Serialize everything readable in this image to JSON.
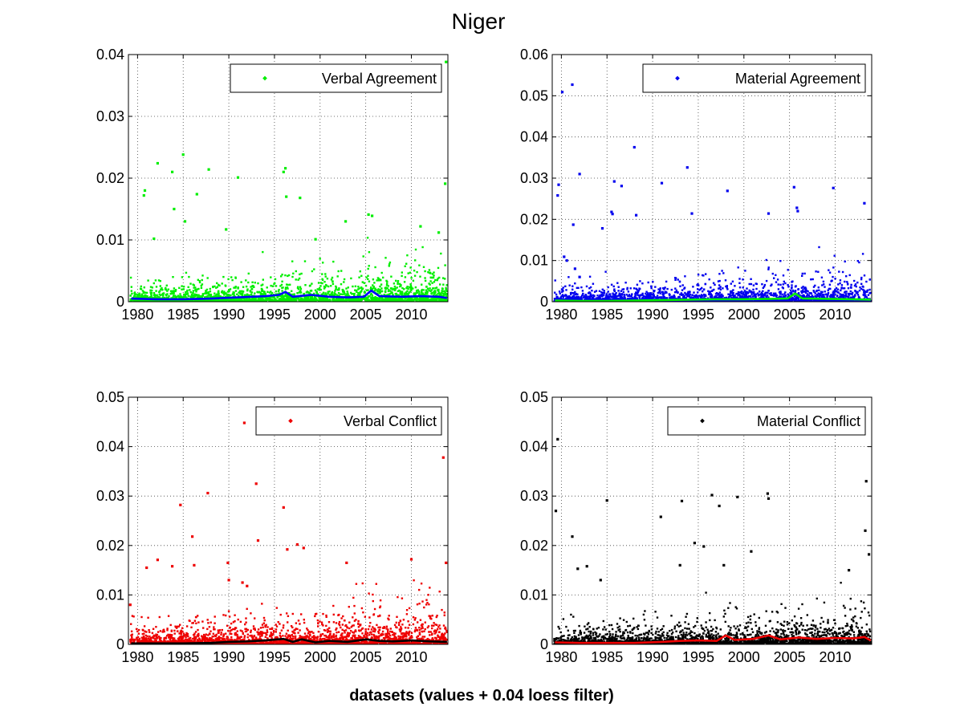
{
  "figure": {
    "title": "Niger",
    "xlabel": "datasets (values + 0.04 loess filter)"
  },
  "chart_data": [
    {
      "type": "scatter",
      "legend": "Verbal Agreement",
      "legend_location": "top-right",
      "point_color": "#00ee00",
      "smooth_color": "#0000ff",
      "xlim": [
        1979,
        2014
      ],
      "ylim": [
        0,
        0.04
      ],
      "xticks": [
        "1980",
        "1985",
        "1990",
        "1995",
        "2000",
        "2005",
        "2010"
      ],
      "yticks": [
        "0",
        "0.01",
        "0.02",
        "0.03",
        "0.04"
      ],
      "grid": true,
      "seed": 11,
      "baseline": 0.0018,
      "points": [
        [
          2013.8,
          0.0388
        ],
        [
          1985.0,
          0.0238
        ],
        [
          1982.2,
          0.0224
        ],
        [
          1996.2,
          0.0216
        ],
        [
          1996.0,
          0.021
        ],
        [
          1983.8,
          0.021
        ],
        [
          1987.8,
          0.0214
        ],
        [
          1991.0,
          0.0201
        ],
        [
          2013.7,
          0.0191
        ],
        [
          1980.8,
          0.018
        ],
        [
          1980.7,
          0.0172
        ],
        [
          1986.5,
          0.0174
        ],
        [
          1997.8,
          0.0168
        ],
        [
          1996.3,
          0.017
        ],
        [
          2005.3,
          0.0141
        ],
        [
          2005.7,
          0.0139
        ],
        [
          1984.0,
          0.015
        ],
        [
          2002.8,
          0.013
        ],
        [
          2011.0,
          0.0122
        ],
        [
          2013.0,
          0.0112
        ],
        [
          1985.2,
          0.013
        ],
        [
          1981.8,
          0.0102
        ],
        [
          1989.7,
          0.0117
        ],
        [
          1999.5,
          0.0101
        ]
      ],
      "smooth": [
        [
          1979.3,
          0.0005
        ],
        [
          1982,
          0.0004
        ],
        [
          1985,
          0.0004
        ],
        [
          1988,
          0.0005
        ],
        [
          1991,
          0.0007
        ],
        [
          1994,
          0.0009
        ],
        [
          1995.5,
          0.0011
        ],
        [
          1996.2,
          0.0016
        ],
        [
          1997,
          0.0008
        ],
        [
          1999,
          0.0011
        ],
        [
          2001,
          0.0008
        ],
        [
          2003,
          0.0007
        ],
        [
          2004.8,
          0.0008
        ],
        [
          2005.6,
          0.0018
        ],
        [
          2006.5,
          0.0009
        ],
        [
          2009,
          0.0008
        ],
        [
          2011,
          0.0009
        ],
        [
          2013,
          0.0008
        ],
        [
          2013.9,
          0.0006
        ]
      ]
    },
    {
      "type": "scatter",
      "legend": "Material Agreement",
      "legend_location": "top-right",
      "point_color": "#0000ee",
      "smooth_color": "#00ee00",
      "xlim": [
        1979,
        2014
      ],
      "ylim": [
        0,
        0.06
      ],
      "xticks": [
        "1980",
        "1985",
        "1990",
        "1995",
        "2000",
        "2005",
        "2010"
      ],
      "yticks": [
        "0",
        "0.01",
        "0.02",
        "0.03",
        "0.04",
        "0.05",
        "0.06"
      ],
      "grid": true,
      "seed": 23,
      "baseline": 0.0022,
      "points": [
        [
          1981.2,
          0.0527
        ],
        [
          1980.1,
          0.0509
        ],
        [
          1988.0,
          0.0375
        ],
        [
          1993.8,
          0.0326
        ],
        [
          1982.0,
          0.031
        ],
        [
          1979.7,
          0.0284
        ],
        [
          1985.8,
          0.0292
        ],
        [
          1986.6,
          0.0281
        ],
        [
          1991.0,
          0.0288
        ],
        [
          1998.2,
          0.0269
        ],
        [
          2005.5,
          0.0278
        ],
        [
          2009.8,
          0.0276
        ],
        [
          1979.6,
          0.0258
        ],
        [
          2013.2,
          0.0239
        ],
        [
          2005.8,
          0.0228
        ],
        [
          2005.9,
          0.022
        ],
        [
          1988.2,
          0.021
        ],
        [
          1994.3,
          0.0214
        ],
        [
          2002.7,
          0.0214
        ],
        [
          1985.5,
          0.0218
        ],
        [
          1985.6,
          0.0213
        ],
        [
          1981.3,
          0.0187
        ],
        [
          1984.5,
          0.0178
        ],
        [
          1980.3,
          0.0109
        ],
        [
          1980.6,
          0.01
        ],
        [
          1981.5,
          0.008
        ],
        [
          1982.0,
          0.006
        ]
      ],
      "smooth": [
        [
          1979.3,
          0.0003
        ],
        [
          1982,
          0.0002
        ],
        [
          1985,
          0.0002
        ],
        [
          1988,
          0.0003
        ],
        [
          1991,
          0.0004
        ],
        [
          1994,
          0.0005
        ],
        [
          1997,
          0.0006
        ],
        [
          2000,
          0.0006
        ],
        [
          2003,
          0.0007
        ],
        [
          2004.8,
          0.0008
        ],
        [
          2005.6,
          0.002
        ],
        [
          2006.4,
          0.0008
        ],
        [
          2009,
          0.0007
        ],
        [
          2012,
          0.0006
        ],
        [
          2013.9,
          0.0005
        ]
      ]
    },
    {
      "type": "scatter",
      "legend": "Verbal Conflict",
      "legend_location": "top-right",
      "point_color": "#ee0000",
      "smooth_color": "#000000",
      "xlim": [
        1979,
        2014
      ],
      "ylim": [
        0,
        0.05
      ],
      "xticks": [
        "1980",
        "1985",
        "1990",
        "1995",
        "2000",
        "2005",
        "2010"
      ],
      "yticks": [
        "0",
        "0.01",
        "0.02",
        "0.03",
        "0.04",
        "0.05"
      ],
      "grid": true,
      "seed": 37,
      "baseline": 0.0025,
      "points": [
        [
          1991.7,
          0.0448
        ],
        [
          2013.5,
          0.0378
        ],
        [
          1993.0,
          0.0325
        ],
        [
          1987.7,
          0.0306
        ],
        [
          1984.7,
          0.0282
        ],
        [
          1996.0,
          0.0277
        ],
        [
          1986.0,
          0.0218
        ],
        [
          1993.2,
          0.021
        ],
        [
          1997.5,
          0.0202
        ],
        [
          1998.2,
          0.0195
        ],
        [
          1996.4,
          0.0192
        ],
        [
          1982.2,
          0.0171
        ],
        [
          1983.8,
          0.0158
        ],
        [
          1986.2,
          0.016
        ],
        [
          1989.9,
          0.0165
        ],
        [
          2002.9,
          0.0165
        ],
        [
          2010.0,
          0.0172
        ],
        [
          2013.8,
          0.0165
        ],
        [
          1979.2,
          0.008
        ],
        [
          1981.0,
          0.0155
        ],
        [
          1990.0,
          0.013
        ],
        [
          1991.5,
          0.0125
        ],
        [
          1992.0,
          0.0118
        ]
      ],
      "smooth": [
        [
          1979.3,
          0.0002
        ],
        [
          1982,
          0.0002
        ],
        [
          1985,
          0.0002
        ],
        [
          1988,
          0.0003
        ],
        [
          1990,
          0.0005
        ],
        [
          1992,
          0.0006
        ],
        [
          1994,
          0.0008
        ],
        [
          1996,
          0.0011
        ],
        [
          1997,
          0.0005
        ],
        [
          1998,
          0.001
        ],
        [
          1999.5,
          0.0004
        ],
        [
          2001,
          0.0007
        ],
        [
          2003,
          0.0005
        ],
        [
          2005,
          0.001
        ],
        [
          2006.5,
          0.0007
        ],
        [
          2008,
          0.0006
        ],
        [
          2010,
          0.0008
        ],
        [
          2012,
          0.0006
        ],
        [
          2013.9,
          0.0005
        ]
      ]
    },
    {
      "type": "scatter",
      "legend": "Material Conflict",
      "legend_location": "top-right",
      "point_color": "#000000",
      "smooth_color": "#ee0000",
      "xlim": [
        1979,
        2014
      ],
      "ylim": [
        0,
        0.05
      ],
      "xticks": [
        "1980",
        "1985",
        "1990",
        "1995",
        "2000",
        "2005",
        "2010"
      ],
      "yticks": [
        "0",
        "0.01",
        "0.02",
        "0.03",
        "0.04",
        "0.05"
      ],
      "grid": true,
      "seed": 53,
      "baseline": 0.0022,
      "points": [
        [
          1979.6,
          0.0415
        ],
        [
          2013.4,
          0.033
        ],
        [
          1996.5,
          0.0302
        ],
        [
          2002.6,
          0.0305
        ],
        [
          2002.7,
          0.0295
        ],
        [
          1999.3,
          0.0298
        ],
        [
          1979.4,
          0.027
        ],
        [
          1985.0,
          0.0291
        ],
        [
          1990.9,
          0.0258
        ],
        [
          1993.2,
          0.029
        ],
        [
          1997.3,
          0.028
        ],
        [
          2013.3,
          0.023
        ],
        [
          1981.2,
          0.0218
        ],
        [
          1994.6,
          0.0205
        ],
        [
          1995.6,
          0.0198
        ],
        [
          2000.8,
          0.0188
        ],
        [
          2013.7,
          0.0182
        ],
        [
          1982.8,
          0.0158
        ],
        [
          1981.8,
          0.0153
        ],
        [
          1984.3,
          0.013
        ],
        [
          1993.0,
          0.016
        ],
        [
          1997.8,
          0.016
        ],
        [
          2011.5,
          0.015
        ]
      ],
      "smooth": [
        [
          1979.3,
          0.0004
        ],
        [
          1982,
          0.0003
        ],
        [
          1985,
          0.0003
        ],
        [
          1988,
          0.0003
        ],
        [
          1991,
          0.0005
        ],
        [
          1993,
          0.0007
        ],
        [
          1995,
          0.0008
        ],
        [
          1997,
          0.0007
        ],
        [
          1998,
          0.0018
        ],
        [
          1999,
          0.0009
        ],
        [
          2001,
          0.0011
        ],
        [
          2002.7,
          0.0018
        ],
        [
          2004,
          0.001
        ],
        [
          2006,
          0.0014
        ],
        [
          2008,
          0.0011
        ],
        [
          2010,
          0.0013
        ],
        [
          2012,
          0.0012
        ],
        [
          2013.2,
          0.0015
        ],
        [
          2013.9,
          0.0008
        ]
      ]
    }
  ]
}
